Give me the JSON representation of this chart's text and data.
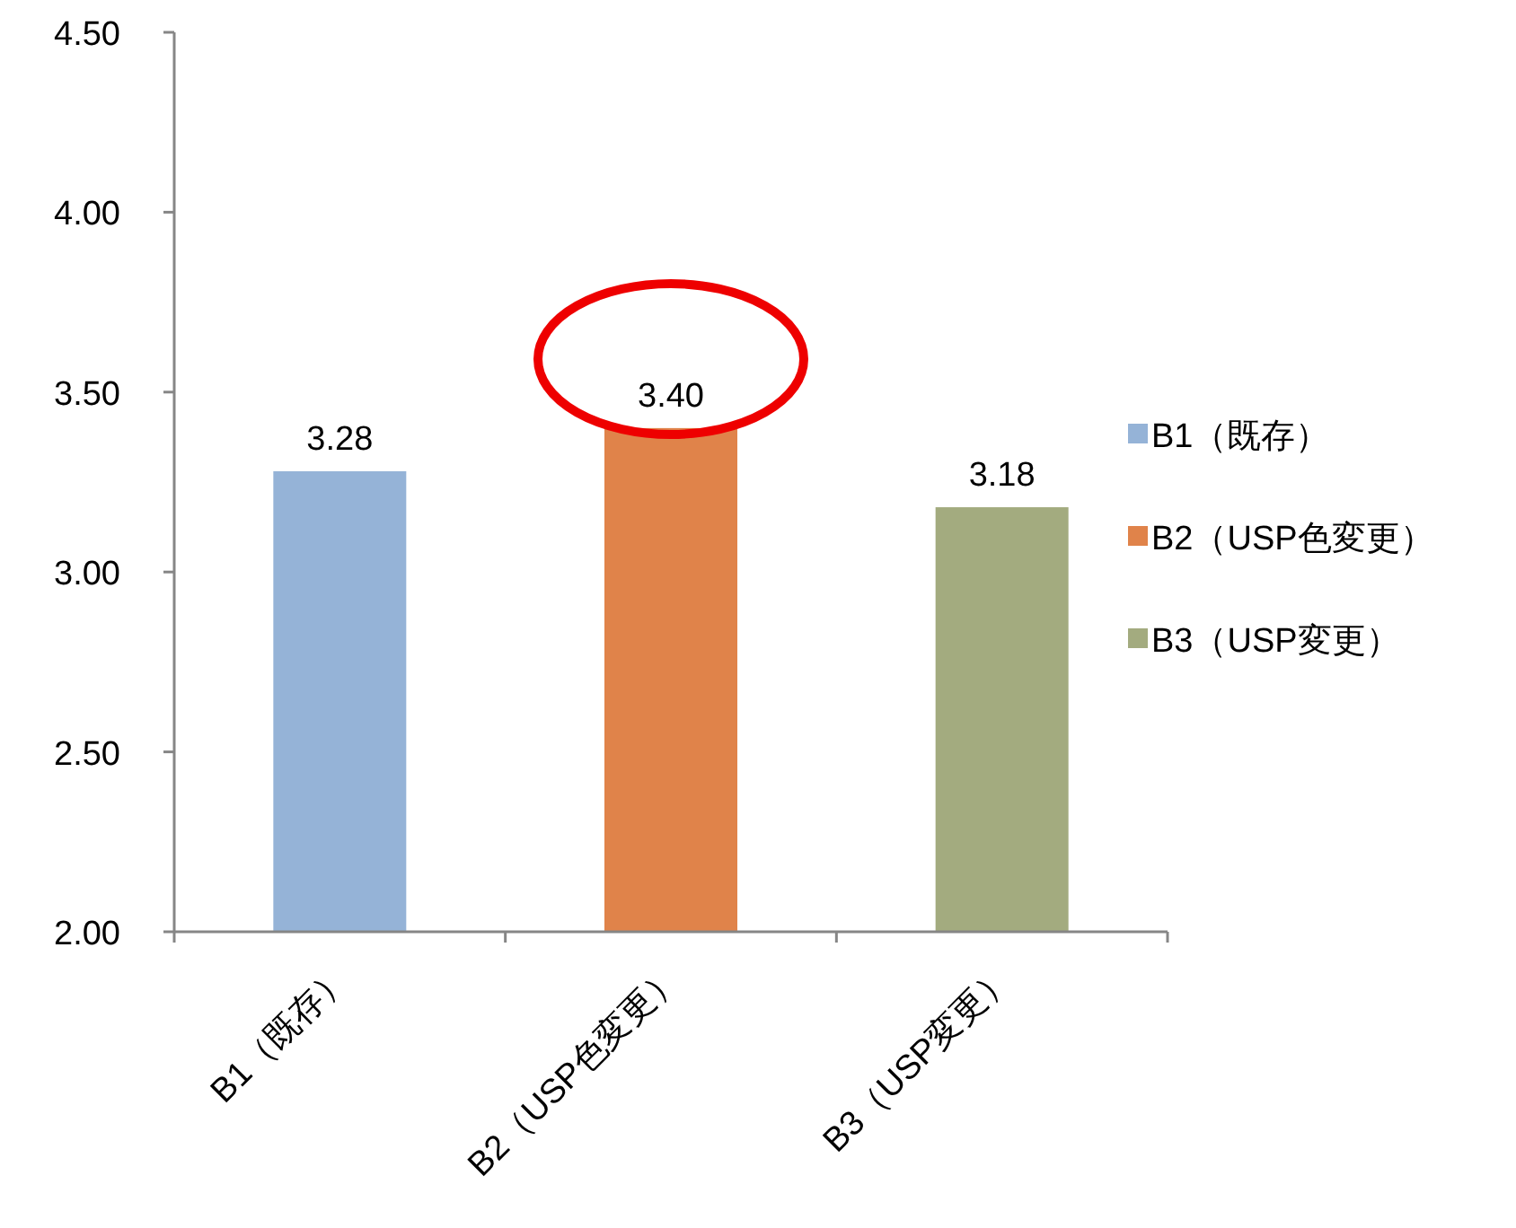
{
  "chart_data": {
    "type": "bar",
    "categories": [
      "B1（既存）",
      "B2（USP色変更）",
      "B3（USP変更）"
    ],
    "series": [
      {
        "name": "B1（既存）",
        "color": "#95b3d7",
        "values": [
          3.28,
          null,
          null
        ],
        "value_labels": [
          "3.28",
          null,
          null
        ]
      },
      {
        "name": "B2（USP色変更）",
        "color": "#e0834a",
        "values": [
          null,
          3.4,
          null
        ],
        "value_labels": [
          null,
          "3.40",
          null
        ]
      },
      {
        "name": "B3（USP変更）",
        "color": "#a3ab7f",
        "values": [
          null,
          null,
          3.18
        ],
        "value_labels": [
          null,
          null,
          "3.18"
        ]
      }
    ],
    "ylim": [
      2,
      4.5
    ],
    "yticks": [
      {
        "value": 2,
        "label": "2.00"
      },
      {
        "value": 2.5,
        "label": "2.50"
      },
      {
        "value": 3,
        "label": "3.00"
      },
      {
        "value": 3.5,
        "label": "3.50"
      },
      {
        "value": 4,
        "label": "4.00"
      },
      {
        "value": 4.5,
        "label": "4.50"
      }
    ],
    "legend": "right"
  }
}
